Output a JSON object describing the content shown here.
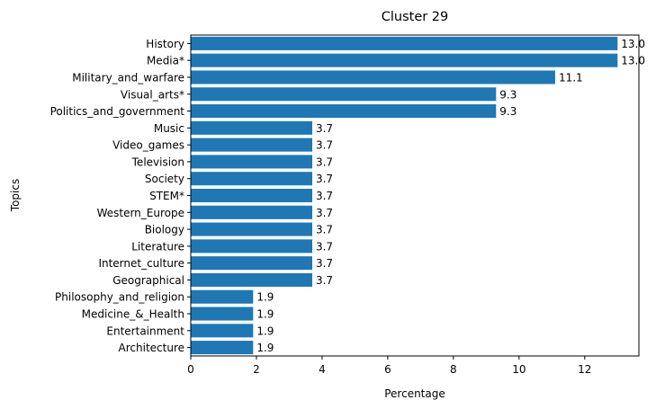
{
  "chart_data": {
    "type": "bar",
    "orientation": "horizontal",
    "title": "Cluster 29",
    "xlabel": "Percentage",
    "ylabel": "Topics",
    "xlim": [
      0,
      13.65
    ],
    "xticks": [
      0,
      2,
      4,
      6,
      8,
      10,
      12
    ],
    "bar_color": "#1f77b4",
    "grid": false,
    "categories": [
      "History",
      "Media*",
      "Military_and_warfare",
      "Visual_arts*",
      "Politics_and_government",
      "Music",
      "Video_games",
      "Television",
      "Society",
      "STEM*",
      "Western_Europe",
      "Biology",
      "Literature",
      "Internet_culture",
      "Geographical",
      "Philosophy_and_religion",
      "Medicine_&_Health",
      "Entertainment",
      "Architecture"
    ],
    "values": [
      13.0,
      13.0,
      11.1,
      9.3,
      9.3,
      3.7,
      3.7,
      3.7,
      3.7,
      3.7,
      3.7,
      3.7,
      3.7,
      3.7,
      3.7,
      1.9,
      1.9,
      1.9,
      1.9
    ],
    "value_labels": [
      "13.0",
      "13.0",
      "11.1",
      "9.3",
      "9.3",
      "3.7",
      "3.7",
      "3.7",
      "3.7",
      "3.7",
      "3.7",
      "3.7",
      "3.7",
      "3.7",
      "3.7",
      "1.9",
      "1.9",
      "1.9",
      "1.9"
    ]
  }
}
